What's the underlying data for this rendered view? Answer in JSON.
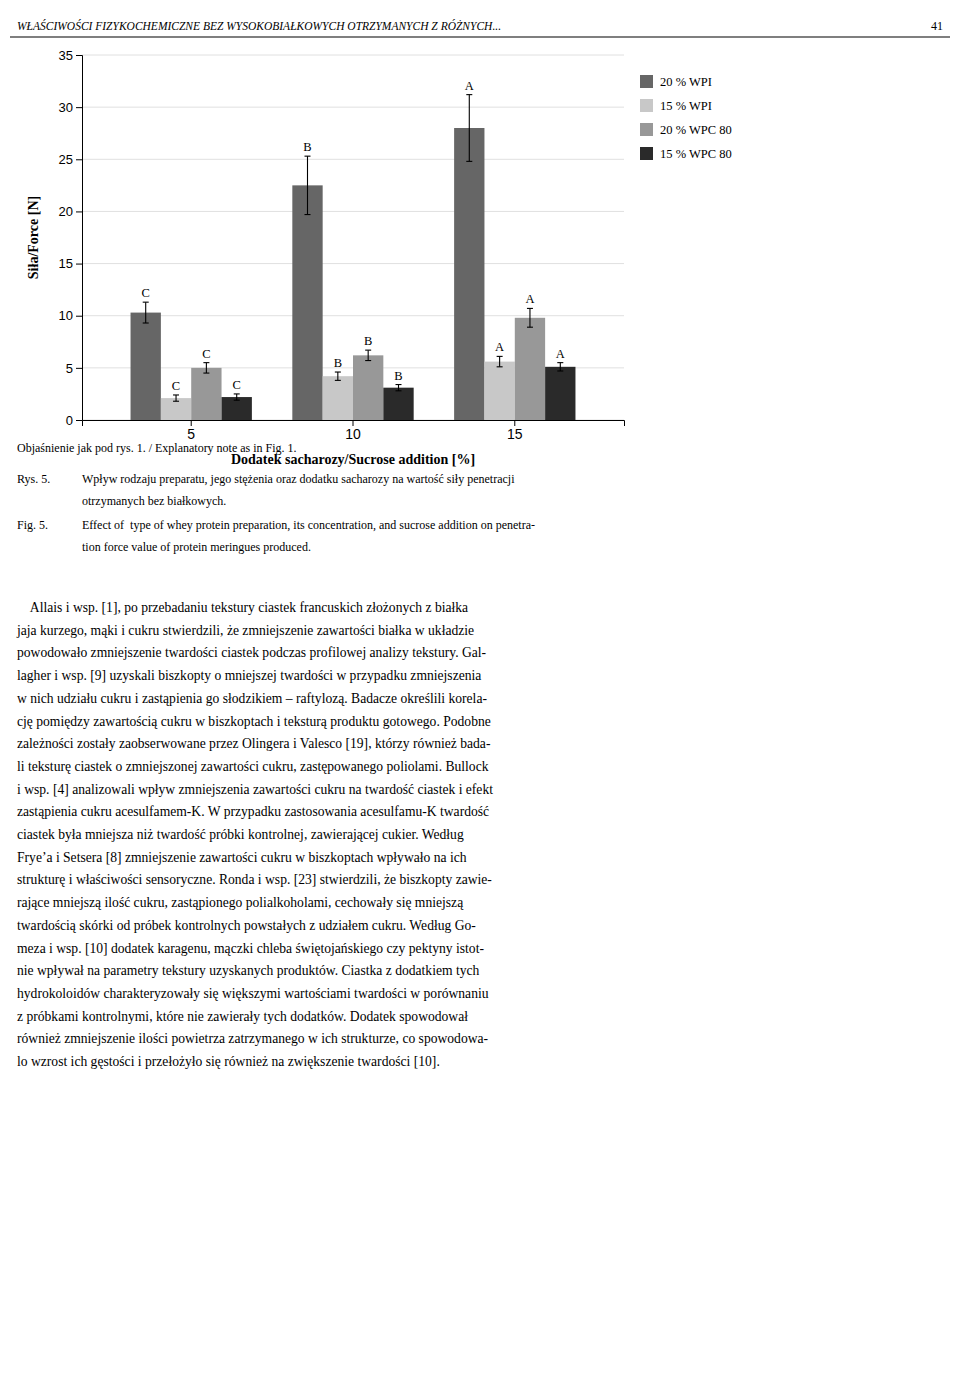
{
  "header_text": "WŁAŚCIWOŚCI FIZYKOCHEMICZNE BEZ WYSOKOBIAŁKOWYCH OTRZYMANYCH Z RÓŻNYCH...",
  "page_number": "41",
  "chart_data": {
    "type": "bar",
    "xlabel": "Dodatek sacharozy/Sucrose addition [%]",
    "ylabel": "Siła/Force [N]",
    "categories": [
      "5",
      "10",
      "15"
    ],
    "series": [
      {
        "name": "20 % WPI",
        "color": "#666666",
        "values": [
          10.3,
          22.5,
          28.0
        ],
        "errors": [
          1.0,
          2.8,
          3.2
        ],
        "letters": [
          "C",
          "B",
          "A"
        ]
      },
      {
        "name": "15 % WPI",
        "color": "#c8c8c8",
        "values": [
          2.1,
          4.2,
          5.6
        ],
        "errors": [
          0.3,
          0.4,
          0.5
        ],
        "letters": [
          "C",
          "B",
          "A"
        ]
      },
      {
        "name": "20 % WPC 80",
        "color": "#989898",
        "values": [
          5.0,
          6.2,
          9.8
        ],
        "errors": [
          0.5,
          0.5,
          0.9
        ],
        "letters": [
          "C",
          "B",
          "A"
        ]
      },
      {
        "name": "15 % WPC 80",
        "color": "#2a2a2a",
        "values": [
          2.2,
          3.1,
          5.1
        ],
        "errors": [
          0.3,
          0.3,
          0.4
        ],
        "letters": [
          "C",
          "B",
          "A"
        ]
      }
    ],
    "ylim": [
      0,
      35
    ],
    "yticks": [
      0,
      5,
      10,
      15,
      20,
      25,
      30,
      35
    ],
    "grid": true,
    "legend": "upper right"
  },
  "caption_note": "Objaśnienie jak pod rys. 1. / Explanatory note as in Fig. 1.",
  "captions": [
    {
      "label": "Rys. 5.",
      "lines": [
        "Wpływ rodzaju preparatu, jego stężenia oraz dodatku sacharozy na wartość siły penetracji",
        "otrzymanych bez białkowych."
      ]
    },
    {
      "label": "Fig. 5.",
      "lines": [
        "Effect of  type of whey protein preparation, its concentration, and sucrose addition on penetra-",
        "tion force value of protein meringues produced."
      ]
    }
  ],
  "body_lines": [
    "    Allais i wsp. [1], po przebadaniu tekstury ciastek francuskich złożonych z białka",
    "jaja kurzego, mąki i cukru stwierdzili, że zmniejszenie zawartości białka w układzie",
    "powodowało zmniejszenie twardości ciastek podczas profilowej analizy tekstury. Gal-",
    "lagher i wsp. [9] uzyskali biszkopty o mniejszej twardości w przypadku zmniejszenia",
    "w nich udziału cukru i zastąpienia go słodzikiem – raftylozą. Badacze określili korela-",
    "cję pomiędzy zawartością cukru w biszkoptach i teksturą produktu gotowego. Podobne",
    "zależności zostały zaobserwowane przez Olingera i Valesco [19], którzy również bada-",
    "li teksturę ciastek o zmniejszonej zawartości cukru, zastępowanego poliolami. Bullock",
    "i wsp. [4] analizowali wpływ zmniejszenia zawartości cukru na twardość ciastek i efekt",
    "zastąpienia cukru acesulfamem-K. W przypadku zastosowania acesulfamu-K twardość",
    "ciastek była mniejsza niż twardość próbki kontrolnej, zawierającej cukier. Według",
    "Frye’a i Setsera [8] zmniejszenie zawartości cukru w biszkoptach wpływało na ich",
    "strukturę i właściwości sensoryczne. Ronda i wsp. [23] stwierdzili, że biszkopty zawie-",
    "rające mniejszą ilość cukru, zastąpionego polialkoholami, cechowały się mniejszą",
    "twardością skórki od próbek kontrolnych powstałych z udziałem cukru. Według Go-",
    "meza i wsp. [10] dodatek karagenu, mączki chleba świętojańskiego czy pektyny istot-",
    "nie wpływał na parametry tekstury uzyskanych produktów. Ciastka z dodatkiem tych",
    "hydrokoloidów charakteryzowały się większymi wartościami twardości w porównaniu",
    "z próbkami kontrolnymi, które nie zawierały tych dodatków. Dodatek spowodował",
    "również zmniejszenie ilości powietrza zatrzymanego w ich strukturze, co spowodowa-",
    "lo wzrost ich gęstości i przełożyło się również na zwiększenie twardości [10]."
  ]
}
